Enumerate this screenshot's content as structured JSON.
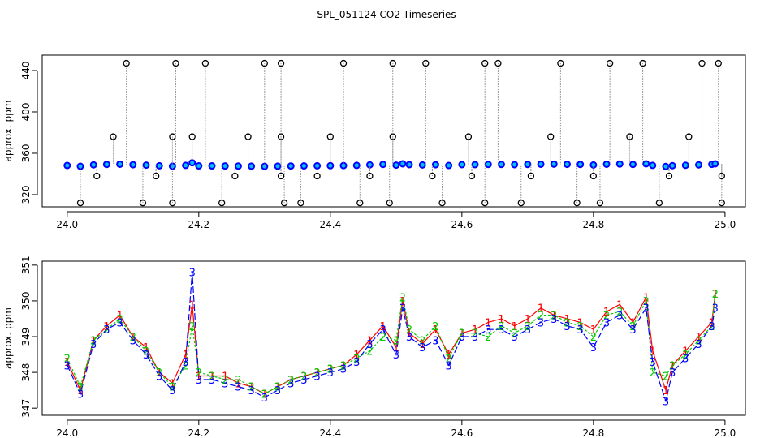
{
  "title": "SPL_051124  CO2 Timeseries",
  "chart_data": [
    {
      "type": "scatter",
      "ylabel": "approx. ppm",
      "xlim": [
        23.962,
        25.031
      ],
      "ylim": [
        308.2,
        454.9
      ],
      "xticks": [
        {
          "value": 24,
          "label": "24.0"
        },
        24.2,
        24.4,
        24.6,
        24.8,
        {
          "value": 25,
          "label": "25.0"
        }
      ],
      "yticks": [
        320,
        360,
        400,
        440
      ],
      "series": [
        {
          "color": "#0000ff",
          "marker": "filled",
          "x": [
            24.0,
            24.02,
            24.04,
            24.06,
            24.08,
            24.1,
            24.12,
            24.14,
            24.16,
            24.18,
            24.19,
            24.2,
            24.22,
            24.24,
            24.26,
            24.28,
            24.3,
            24.32,
            24.34,
            24.36,
            24.38,
            24.4,
            24.42,
            24.44,
            24.46,
            24.48,
            24.5,
            24.51,
            24.52,
            24.54,
            24.56,
            24.58,
            24.6,
            24.62,
            24.64,
            24.66,
            24.68,
            24.7,
            24.72,
            24.74,
            24.76,
            24.78,
            24.8,
            24.82,
            24.84,
            24.86,
            24.88,
            24.89,
            24.91,
            24.92,
            24.94,
            24.96,
            24.98,
            24.985
          ],
          "values": [
            348.2,
            347.4,
            348.8,
            349.2,
            349.4,
            348.9,
            348.5,
            347.9,
            347.5,
            348.3,
            350.8,
            347.8,
            347.8,
            347.7,
            347.6,
            347.5,
            347.3,
            347.5,
            347.7,
            347.8,
            347.9,
            348.0,
            348.1,
            348.3,
            348.8,
            349.2,
            348.5,
            349.8,
            349.0,
            348.7,
            348.9,
            348.2,
            349.0,
            349.0,
            349.2,
            349.2,
            349.0,
            349.2,
            349.4,
            349.5,
            349.3,
            349.2,
            348.7,
            349.4,
            349.6,
            349.2,
            349.8,
            348.3,
            347.2,
            348.0,
            348.4,
            348.8,
            349.3,
            349.8
          ]
        },
        {
          "color": "#000000",
          "marker": "open",
          "stems": true,
          "x": [
            24.02,
            24.115,
            24.16,
            24.235,
            24.33,
            24.355,
            24.445,
            24.49,
            24.57,
            24.635,
            24.69,
            24.775,
            24.81,
            24.9,
            24.995,
            24.045,
            24.135,
            24.255,
            24.325,
            24.38,
            24.46,
            24.555,
            24.615,
            24.705,
            24.8,
            24.915,
            24.995,
            24.07,
            24.16,
            24.19,
            24.275,
            24.325,
            24.4,
            24.495,
            24.61,
            24.735,
            24.855,
            24.945,
            24.09,
            24.165,
            24.21,
            24.3,
            24.325,
            24.42,
            24.495,
            24.545,
            24.635,
            24.655,
            24.75,
            24.825,
            24.875,
            24.965,
            24.99
          ],
          "values": [
            312,
            312,
            312,
            312,
            312,
            312,
            312,
            312,
            312,
            312,
            312,
            312,
            312,
            312,
            312,
            338,
            338,
            338,
            338,
            338,
            338,
            338,
            338,
            338,
            338,
            338,
            338,
            376,
            376,
            376,
            376,
            376,
            376,
            376,
            376,
            376,
            376,
            376,
            447,
            447,
            447,
            447,
            447,
            447,
            447,
            447,
            447,
            447,
            447,
            447,
            447,
            447,
            447
          ]
        }
      ]
    },
    {
      "type": "line",
      "ylabel": "approx. ppm",
      "xlim": [
        23.962,
        25.031
      ],
      "ylim": [
        346.8,
        351.11
      ],
      "xticks": [
        {
          "value": 24,
          "label": "24.0"
        },
        24.2,
        24.4,
        24.6,
        24.8,
        {
          "value": 25,
          "label": "25.0"
        }
      ],
      "yticks": [
        347,
        348,
        349,
        350,
        351
      ],
      "x": [
        24.0,
        24.02,
        24.04,
        24.06,
        24.08,
        24.1,
        24.12,
        24.14,
        24.16,
        24.18,
        24.19,
        24.2,
        24.22,
        24.24,
        24.26,
        24.28,
        24.3,
        24.32,
        24.34,
        24.36,
        24.38,
        24.4,
        24.42,
        24.44,
        24.46,
        24.48,
        24.5,
        24.51,
        24.52,
        24.54,
        24.56,
        24.58,
        24.6,
        24.62,
        24.64,
        24.66,
        24.68,
        24.7,
        24.72,
        24.74,
        24.76,
        24.78,
        24.8,
        24.82,
        24.84,
        24.86,
        24.88,
        24.89,
        24.91,
        24.92,
        24.94,
        24.96,
        24.98,
        24.985
      ],
      "series": [
        {
          "name": "1",
          "color": "#ff0000",
          "values": [
            348.3,
            347.5,
            348.9,
            349.3,
            349.6,
            349.0,
            348.7,
            348.0,
            347.7,
            348.5,
            349.9,
            347.9,
            347.9,
            347.9,
            347.7,
            347.6,
            347.4,
            347.6,
            347.8,
            347.9,
            348.0,
            348.1,
            348.2,
            348.5,
            348.9,
            349.3,
            348.7,
            350.0,
            349.1,
            348.8,
            349.2,
            348.5,
            349.1,
            349.2,
            349.4,
            349.5,
            349.3,
            349.5,
            349.8,
            349.6,
            349.5,
            349.4,
            349.2,
            349.7,
            349.9,
            349.4,
            350.1,
            348.6,
            347.5,
            348.2,
            348.6,
            349.0,
            349.4,
            350.2
          ]
        },
        {
          "name": "2",
          "color": "#00cc00",
          "values": [
            348.4,
            347.6,
            348.9,
            349.2,
            349.5,
            349.0,
            348.6,
            348.0,
            347.6,
            348.2,
            349.3,
            348.0,
            347.9,
            347.8,
            347.8,
            347.6,
            347.4,
            347.6,
            347.8,
            347.9,
            348.0,
            348.1,
            348.2,
            348.4,
            348.6,
            349.0,
            348.9,
            350.1,
            349.2,
            348.9,
            349.3,
            348.4,
            349.1,
            349.1,
            349.0,
            349.3,
            349.1,
            349.3,
            349.6,
            349.6,
            349.4,
            349.3,
            349.0,
            349.6,
            349.7,
            349.3,
            350.0,
            348.0,
            347.9,
            348.2,
            348.5,
            348.9,
            349.3,
            350.2
          ]
        },
        {
          "name": "3",
          "color": "#0000ff",
          "values": [
            348.2,
            347.4,
            348.8,
            349.2,
            349.4,
            348.9,
            348.5,
            347.9,
            347.5,
            348.3,
            350.8,
            347.8,
            347.8,
            347.7,
            347.6,
            347.5,
            347.3,
            347.5,
            347.7,
            347.8,
            347.9,
            348.0,
            348.1,
            348.3,
            348.8,
            349.2,
            348.5,
            349.8,
            349.0,
            348.7,
            348.9,
            348.2,
            349.0,
            349.0,
            349.2,
            349.2,
            349.0,
            349.2,
            349.4,
            349.5,
            349.3,
            349.2,
            348.7,
            349.4,
            349.6,
            349.2,
            349.8,
            348.3,
            347.2,
            348.0,
            348.4,
            348.8,
            349.3,
            349.8
          ]
        }
      ]
    }
  ]
}
